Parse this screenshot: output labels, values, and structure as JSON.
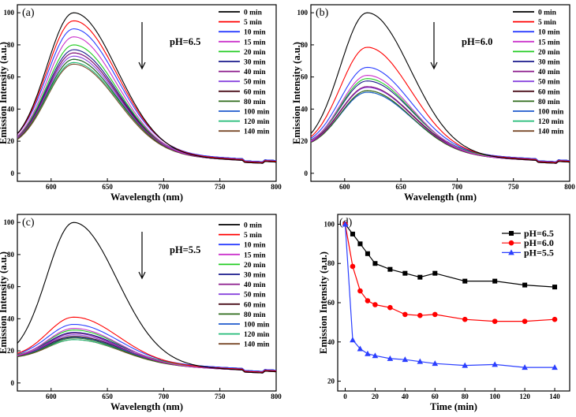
{
  "chart_data": [
    {
      "type": "line",
      "panel": "(a)",
      "annotation": "pH=6.5",
      "xlabel": "Wavelength (nm)",
      "ylabel": "Emission Intensity (a.u.)",
      "xlim": [
        570,
        800
      ],
      "ylim": [
        -5,
        105
      ],
      "xticks": [
        600,
        650,
        700,
        750,
        800
      ],
      "yticks": [
        0,
        20,
        40,
        60,
        80,
        100
      ],
      "peak_wavelength": 620,
      "series": [
        {
          "name": "0 min",
          "color": "#000000",
          "peak": 100
        },
        {
          "name": "5 min",
          "color": "#ff0000",
          "peak": 95
        },
        {
          "name": "10 min",
          "color": "#2b3fff",
          "peak": 90
        },
        {
          "name": "15 min",
          "color": "#cc33cc",
          "peak": 85
        },
        {
          "name": "20 min",
          "color": "#22cc22",
          "peak": 80
        },
        {
          "name": "30 min",
          "color": "#1a1a8c",
          "peak": 77
        },
        {
          "name": "40 min",
          "color": "#8b1a8b",
          "peak": 75
        },
        {
          "name": "50 min",
          "color": "#8844dd",
          "peak": 73
        },
        {
          "name": "60 min",
          "color": "#4a0f1a",
          "peak": 75
        },
        {
          "name": "80 min",
          "color": "#2e6b1a",
          "peak": 71
        },
        {
          "name": "100 min",
          "color": "#1e5acd",
          "peak": 71
        },
        {
          "name": "120 min",
          "color": "#22bb77",
          "peak": 69
        },
        {
          "name": "140 min",
          "color": "#7a4a2a",
          "peak": 68
        }
      ]
    },
    {
      "type": "line",
      "panel": "(b)",
      "annotation": "pH=6.0",
      "xlabel": "Wavelength (nm)",
      "ylabel": "Emission Intensity (a.u.)",
      "xlim": [
        570,
        800
      ],
      "ylim": [
        -5,
        105
      ],
      "xticks": [
        600,
        650,
        700,
        750,
        800
      ],
      "yticks": [
        0,
        20,
        40,
        60,
        80,
        100
      ],
      "peak_wavelength": 620,
      "series": [
        {
          "name": "0 min",
          "color": "#000000",
          "peak": 100
        },
        {
          "name": "5 min",
          "color": "#ff0000",
          "peak": 78.5
        },
        {
          "name": "10 min",
          "color": "#2b3fff",
          "peak": 66
        },
        {
          "name": "15 min",
          "color": "#cc33cc",
          "peak": 61
        },
        {
          "name": "20 min",
          "color": "#22cc22",
          "peak": 59
        },
        {
          "name": "30 min",
          "color": "#1a1a8c",
          "peak": 57.5
        },
        {
          "name": "40 min",
          "color": "#8b1a8b",
          "peak": 54
        },
        {
          "name": "50 min",
          "color": "#8844dd",
          "peak": 53.5
        },
        {
          "name": "60 min",
          "color": "#4a0f1a",
          "peak": 54
        },
        {
          "name": "80 min",
          "color": "#2e6b1a",
          "peak": 51.5
        },
        {
          "name": "100 min",
          "color": "#1e5acd",
          "peak": 50.5
        },
        {
          "name": "120 min",
          "color": "#22bb77",
          "peak": 50.5
        },
        {
          "name": "140 min",
          "color": "#7a4a2a",
          "peak": 51.5
        }
      ]
    },
    {
      "type": "line",
      "panel": "(c)",
      "annotation": "pH=5.5",
      "xlabel": "Wavelength (nm)",
      "ylabel": "Emission Intensity (a.u.)",
      "xlim": [
        570,
        800
      ],
      "ylim": [
        -5,
        105
      ],
      "xticks": [
        600,
        650,
        700,
        750,
        800
      ],
      "yticks": [
        0,
        20,
        40,
        60,
        80,
        100
      ],
      "peak_wavelength": 620,
      "series": [
        {
          "name": "0 min",
          "color": "#000000",
          "peak": 100
        },
        {
          "name": "5 min",
          "color": "#ff0000",
          "peak": 41
        },
        {
          "name": "10 min",
          "color": "#2b3fff",
          "peak": 36.5
        },
        {
          "name": "15 min",
          "color": "#cc33cc",
          "peak": 34
        },
        {
          "name": "20 min",
          "color": "#22cc22",
          "peak": 33
        },
        {
          "name": "30 min",
          "color": "#1a1a8c",
          "peak": 31.5
        },
        {
          "name": "40 min",
          "color": "#8b1a8b",
          "peak": 31
        },
        {
          "name": "50 min",
          "color": "#8844dd",
          "peak": 30
        },
        {
          "name": "60 min",
          "color": "#4a0f1a",
          "peak": 29
        },
        {
          "name": "80 min",
          "color": "#2e6b1a",
          "peak": 28
        },
        {
          "name": "100 min",
          "color": "#1e5acd",
          "peak": 28.5
        },
        {
          "name": "120 min",
          "color": "#22bb77",
          "peak": 27
        },
        {
          "name": "140 min",
          "color": "#7a4a2a",
          "peak": 27
        }
      ]
    },
    {
      "type": "line",
      "panel": "(d)",
      "xlabel": "Time (min)",
      "ylabel": "Emission Intensity (a.u.)",
      "xlim": [
        -5,
        150
      ],
      "ylim": [
        15,
        105
      ],
      "xticks": [
        0,
        20,
        40,
        60,
        80,
        100,
        120,
        140
      ],
      "yticks": [
        20,
        40,
        60,
        80,
        100
      ],
      "x": [
        0,
        5,
        10,
        15,
        20,
        30,
        40,
        50,
        60,
        80,
        100,
        120,
        140
      ],
      "series": [
        {
          "name": "pH=6.5",
          "color": "#000000",
          "marker": "square",
          "values": [
            100,
            95,
            90,
            85,
            80,
            77,
            75,
            73,
            75,
            71,
            71,
            69,
            68
          ]
        },
        {
          "name": "pH=6.0",
          "color": "#ff0000",
          "marker": "circle",
          "values": [
            100,
            78.5,
            66,
            61,
            59,
            57.5,
            54,
            53.5,
            54,
            51.5,
            50.5,
            50.5,
            51.5
          ]
        },
        {
          "name": "pH=5.5",
          "color": "#2b3fff",
          "marker": "triangle",
          "values": [
            100,
            41,
            36.5,
            34,
            33,
            31.5,
            31,
            30,
            29,
            28,
            28.5,
            27,
            27
          ]
        }
      ]
    }
  ]
}
